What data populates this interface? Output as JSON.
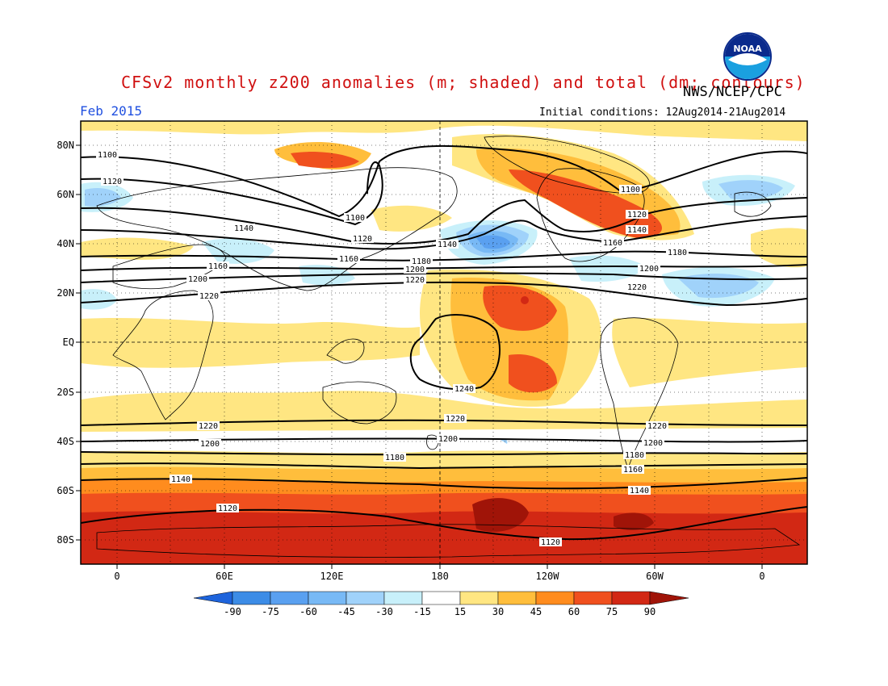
{
  "title": "CFSv2 monthly z200 anomalies (m; shaded) and total (dm; contours)",
  "agency": "NWS/NCEP/CPC",
  "logo_text": "NOAA",
  "valid_month": "Feb 2015",
  "initial_conditions": "Initial conditions: 12Aug2014-21Aug2014",
  "lat_labels": [
    "80N",
    "60N",
    "40N",
    "20N",
    "EQ",
    "20S",
    "40S",
    "60S",
    "80S"
  ],
  "lon_labels": [
    "0",
    "60E",
    "120E",
    "180",
    "120W",
    "60W",
    "0"
  ],
  "colorbar": {
    "labels": [
      "-90",
      "-75",
      "-60",
      "-45",
      "-30",
      "-15",
      "15",
      "30",
      "45",
      "60",
      "75",
      "90"
    ],
    "colors": [
      "#1e64dc",
      "#3c8ce6",
      "#5aa0f0",
      "#78b9f5",
      "#a0d2fa",
      "#c8f0fa",
      "#ffffff",
      "#ffe682",
      "#ffbe3c",
      "#ff8c1e",
      "#f0501e",
      "#d22814",
      "#a01408"
    ]
  },
  "contour_labels": [
    "1100",
    "1120",
    "1140",
    "1160",
    "1180",
    "1200",
    "1220",
    "1240"
  ]
}
